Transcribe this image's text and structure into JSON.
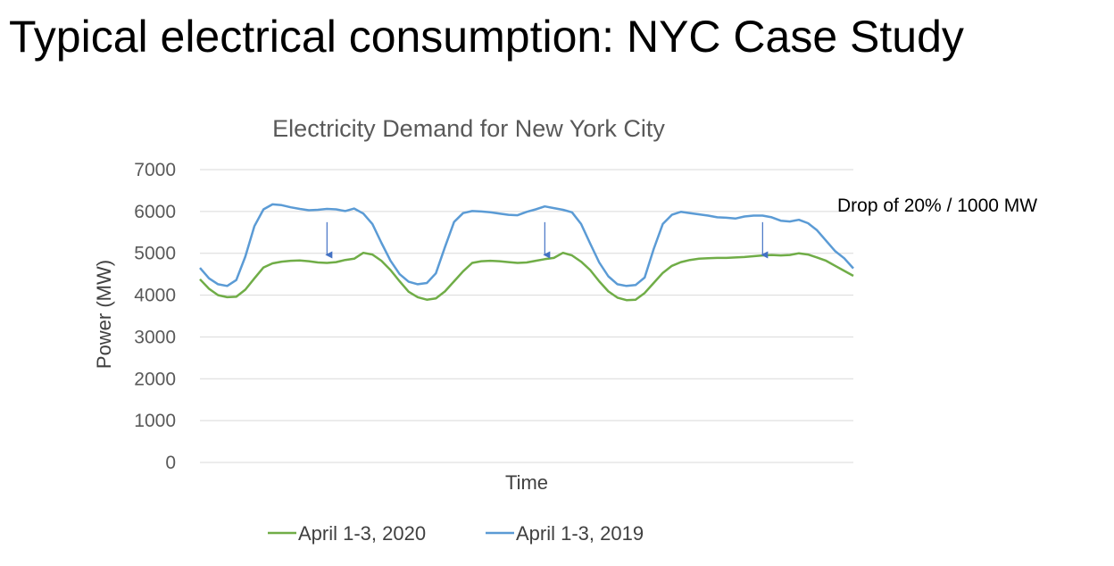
{
  "slide": {
    "title": "Typical electrical consumption: NYC Case Study"
  },
  "colors": {
    "series_2020": "#70AD47",
    "series_2019": "#5B9BD5",
    "arrow": "#4472C4",
    "gridline": "#D9D9D9"
  },
  "chart_data": {
    "type": "line",
    "title": "Electricity Demand for New York City",
    "xlabel": "Time",
    "ylabel": "Power (MW)",
    "ylim": [
      0,
      7000
    ],
    "yticks": [
      0,
      1000,
      2000,
      3000,
      4000,
      5000,
      6000,
      7000
    ],
    "xlim": [
      0,
      72
    ],
    "x_unit": "hours",
    "grid": true,
    "legend_position": "bottom",
    "annotation": {
      "text": "Drop of 20% / 1000 MW",
      "arrow_x": [
        14,
        38,
        62
      ],
      "arrow_from": 6000,
      "arrow_to": 4920
    },
    "series": [
      {
        "name": "April 1-3, 2020",
        "color_key": "series_2020",
        "x": [
          0,
          1,
          2,
          3,
          4,
          5,
          6,
          7,
          8,
          9,
          10,
          11,
          12,
          13,
          14,
          15,
          16,
          17,
          18,
          19,
          20,
          21,
          22,
          23,
          24,
          25,
          26,
          27,
          28,
          29,
          30,
          31,
          32,
          33,
          34,
          35,
          36,
          37,
          38,
          39,
          40,
          41,
          42,
          43,
          44,
          45,
          46,
          47,
          48,
          49,
          50,
          51,
          52,
          53,
          54,
          55,
          56,
          57,
          58,
          59,
          60,
          61,
          62,
          63,
          64,
          65,
          66,
          67,
          68,
          69,
          70,
          71,
          72
        ],
        "values": [
          4380,
          4150,
          4000,
          3950,
          3960,
          4130,
          4400,
          4660,
          4760,
          4800,
          4820,
          4830,
          4810,
          4780,
          4770,
          4790,
          4840,
          4870,
          5010,
          4970,
          4820,
          4600,
          4330,
          4080,
          3950,
          3890,
          3920,
          4090,
          4330,
          4570,
          4770,
          4810,
          4820,
          4810,
          4790,
          4770,
          4780,
          4820,
          4860,
          4890,
          5010,
          4950,
          4800,
          4600,
          4330,
          4090,
          3940,
          3880,
          3890,
          4050,
          4290,
          4530,
          4700,
          4790,
          4840,
          4870,
          4880,
          4890,
          4890,
          4900,
          4910,
          4930,
          4950,
          4960,
          4950,
          4960,
          5000,
          4970,
          4900,
          4820,
          4700,
          4580,
          4460
        ]
      },
      {
        "name": "April 1-3, 2019",
        "color_key": "series_2019",
        "x": [
          0,
          1,
          2,
          3,
          4,
          5,
          6,
          7,
          8,
          9,
          10,
          11,
          12,
          13,
          14,
          15,
          16,
          17,
          18,
          19,
          20,
          21,
          22,
          23,
          24,
          25,
          26,
          27,
          28,
          29,
          30,
          31,
          32,
          33,
          34,
          35,
          36,
          37,
          38,
          39,
          40,
          41,
          42,
          43,
          44,
          45,
          46,
          47,
          48,
          49,
          50,
          51,
          52,
          53,
          54,
          55,
          56,
          57,
          58,
          59,
          60,
          61,
          62,
          63,
          64,
          65,
          66,
          67,
          68,
          69,
          70,
          71,
          72
        ],
        "values": [
          4650,
          4400,
          4260,
          4220,
          4360,
          4920,
          5650,
          6050,
          6170,
          6150,
          6100,
          6060,
          6030,
          6040,
          6060,
          6050,
          6010,
          6070,
          5950,
          5700,
          5250,
          4820,
          4500,
          4320,
          4260,
          4290,
          4520,
          5150,
          5750,
          5960,
          6010,
          6000,
          5980,
          5950,
          5920,
          5910,
          5990,
          6050,
          6120,
          6080,
          6040,
          5980,
          5700,
          5230,
          4780,
          4450,
          4260,
          4220,
          4240,
          4420,
          5100,
          5700,
          5920,
          5990,
          5960,
          5930,
          5900,
          5860,
          5850,
          5830,
          5880,
          5900,
          5900,
          5860,
          5780,
          5760,
          5800,
          5720,
          5550,
          5300,
          5050,
          4880,
          4640
        ]
      }
    ]
  }
}
